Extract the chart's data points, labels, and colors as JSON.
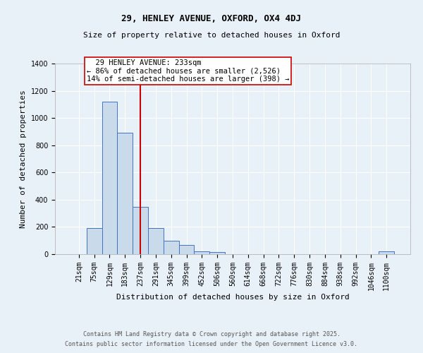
{
  "title1": "29, HENLEY AVENUE, OXFORD, OX4 4DJ",
  "title2": "Size of property relative to detached houses in Oxford",
  "xlabel": "Distribution of detached houses by size in Oxford",
  "ylabel": "Number of detached properties",
  "bar_labels": [
    "21sqm",
    "75sqm",
    "129sqm",
    "183sqm",
    "237sqm",
    "291sqm",
    "345sqm",
    "399sqm",
    "452sqm",
    "506sqm",
    "560sqm",
    "614sqm",
    "668sqm",
    "722sqm",
    "776sqm",
    "830sqm",
    "884sqm",
    "938sqm",
    "992sqm",
    "1046sqm",
    "1100sqm"
  ],
  "bar_values": [
    0,
    190,
    1120,
    890,
    350,
    190,
    100,
    65,
    20,
    15,
    0,
    0,
    0,
    0,
    0,
    0,
    0,
    0,
    0,
    0,
    20
  ],
  "bar_color": "#c9daea",
  "bar_edge_color": "#4472c4",
  "red_line_index": 4,
  "annotation_text": "  29 HENLEY AVENUE: 233sqm  \n← 86% of detached houses are smaller (2,526)\n14% of semi-detached houses are larger (398) →",
  "annotation_box_color": "#ffffff",
  "annotation_box_edge": "#cc0000",
  "vline_color": "#cc0000",
  "ylim": [
    0,
    1400
  ],
  "yticks": [
    0,
    200,
    400,
    600,
    800,
    1000,
    1200,
    1400
  ],
  "bg_color": "#e8f0f8",
  "footer1": "Contains HM Land Registry data © Crown copyright and database right 2025.",
  "footer2": "Contains public sector information licensed under the Open Government Licence v3.0.",
  "title1_fontsize": 9,
  "title2_fontsize": 8,
  "axis_label_fontsize": 8,
  "tick_fontsize": 7,
  "annotation_fontsize": 7.5,
  "footer_fontsize": 6
}
